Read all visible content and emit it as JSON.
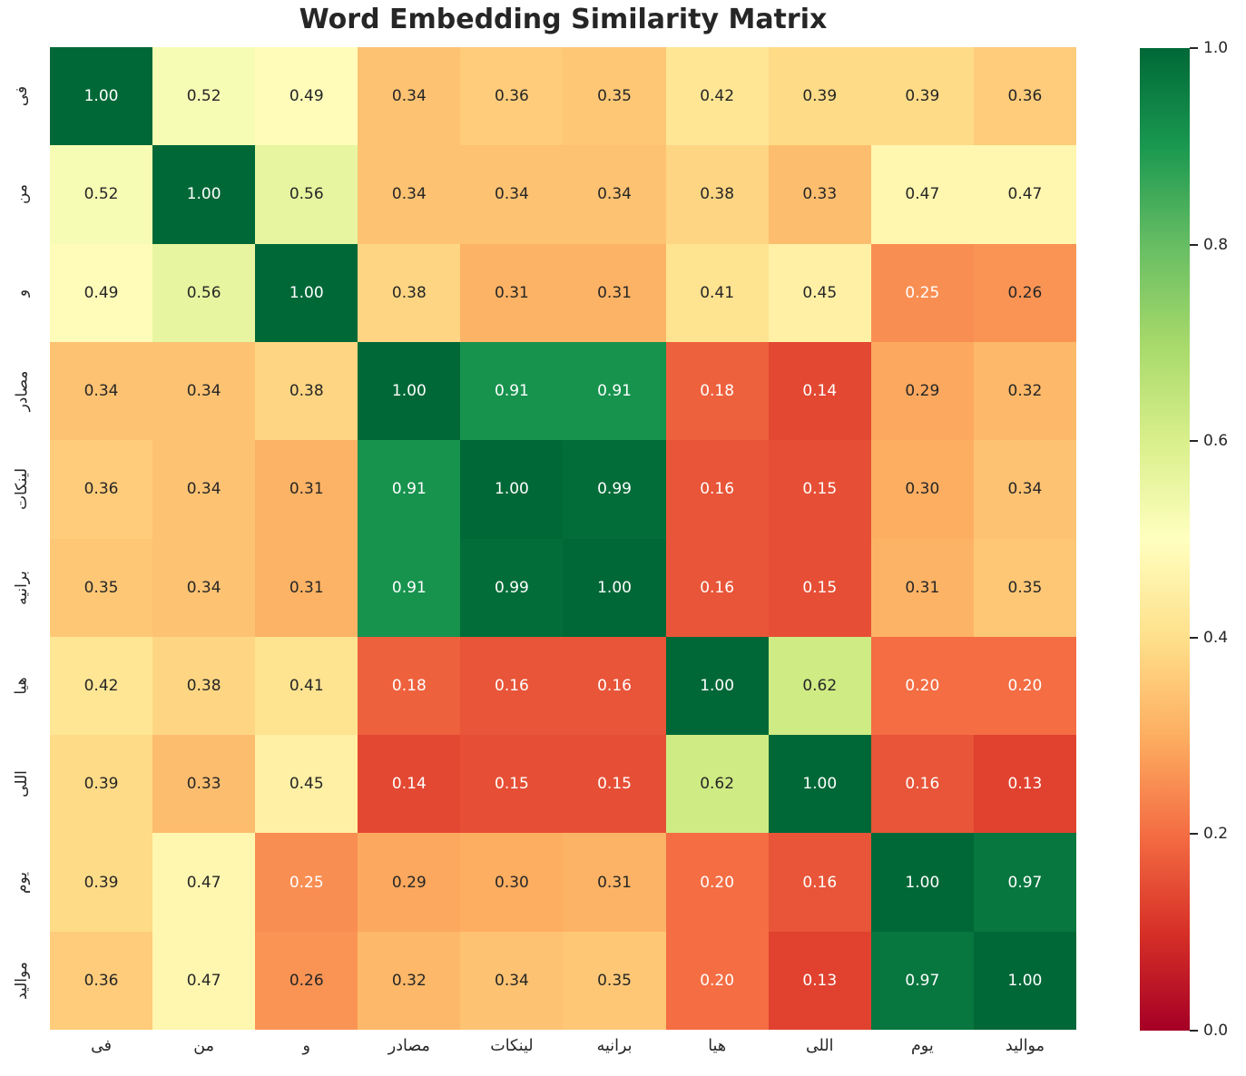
{
  "figure": {
    "title": "Word Embedding Similarity Matrix"
  },
  "chart_data": {
    "type": "heatmap",
    "title": "Word Embedding Similarity Matrix",
    "x_labels": [
      "فى",
      "من",
      "و",
      "مصادر",
      "لينكات",
      "برانيه",
      "هيا",
      "اللى",
      "يوم",
      "مواليد"
    ],
    "y_labels": [
      "فى",
      "من",
      "و",
      "مصادر",
      "لينكات",
      "برانيه",
      "هيا",
      "اللى",
      "يوم",
      "مواليد"
    ],
    "values": [
      [
        1.0,
        0.52,
        0.49,
        0.34,
        0.36,
        0.35,
        0.42,
        0.39,
        0.39,
        0.36
      ],
      [
        0.52,
        1.0,
        0.56,
        0.34,
        0.34,
        0.34,
        0.38,
        0.33,
        0.47,
        0.47
      ],
      [
        0.49,
        0.56,
        1.0,
        0.38,
        0.31,
        0.31,
        0.41,
        0.45,
        0.25,
        0.26
      ],
      [
        0.34,
        0.34,
        0.38,
        1.0,
        0.91,
        0.91,
        0.18,
        0.14,
        0.29,
        0.32
      ],
      [
        0.36,
        0.34,
        0.31,
        0.91,
        1.0,
        0.99,
        0.16,
        0.15,
        0.3,
        0.34
      ],
      [
        0.35,
        0.34,
        0.31,
        0.91,
        0.99,
        1.0,
        0.16,
        0.15,
        0.31,
        0.35
      ],
      [
        0.42,
        0.38,
        0.41,
        0.18,
        0.16,
        0.16,
        1.0,
        0.62,
        0.2,
        0.2
      ],
      [
        0.39,
        0.33,
        0.45,
        0.14,
        0.15,
        0.15,
        0.62,
        1.0,
        0.16,
        0.13
      ],
      [
        0.39,
        0.47,
        0.25,
        0.29,
        0.3,
        0.31,
        0.2,
        0.16,
        1.0,
        0.97
      ],
      [
        0.36,
        0.47,
        0.26,
        0.32,
        0.34,
        0.35,
        0.2,
        0.13,
        0.97,
        1.0
      ]
    ],
    "value_decimals": 2,
    "vmin": 0.0,
    "vmax": 1.0,
    "colormap_name": "RdYlGn",
    "colormap_anchors": [
      "#a50026",
      "#d73027",
      "#f46d43",
      "#fdae61",
      "#fee08b",
      "#ffffbf",
      "#d9ef8b",
      "#a6d96a",
      "#66bd63",
      "#1a9850",
      "#006837"
    ],
    "colorbar": {
      "position": "right",
      "ticks": [
        {
          "label": "1.0",
          "value": 1.0
        },
        {
          "label": "0.8",
          "value": 0.8
        },
        {
          "label": "0.6",
          "value": 0.6
        },
        {
          "label": "0.4",
          "value": 0.4
        },
        {
          "label": "0.2",
          "value": 0.2
        },
        {
          "label": "0.0",
          "value": 0.0
        }
      ]
    },
    "grid": false,
    "colors": {
      "annotation_dark": "#262626",
      "annotation_light": "#ffffff",
      "tick_text": "#262626",
      "title_text": "#262626",
      "background": "#ffffff"
    }
  }
}
